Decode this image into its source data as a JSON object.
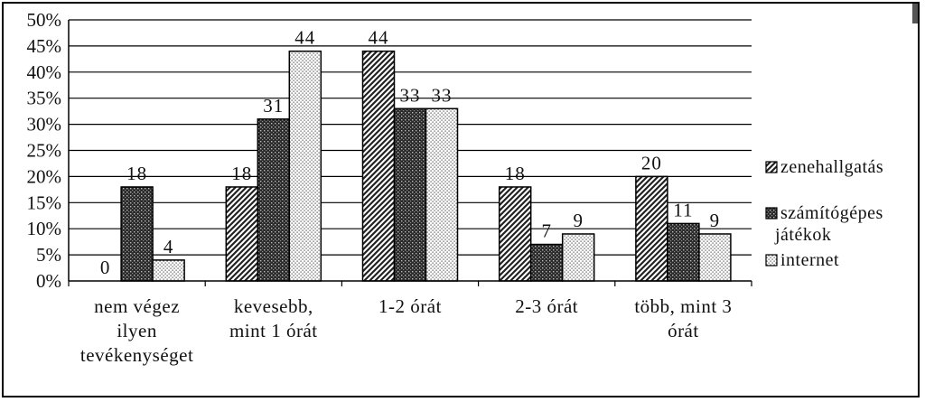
{
  "chart_data": {
    "type": "bar",
    "categories": [
      [
        "nem végez",
        "ilyen",
        "tevékenységet"
      ],
      [
        "kevesebb,",
        "mint 1 órát"
      ],
      [
        "1-2 órát"
      ],
      [
        "2-3 órát"
      ],
      [
        "több, mint 3",
        "órát"
      ]
    ],
    "series": [
      {
        "name": "zenehallgatás",
        "values": [
          0,
          18,
          44,
          18,
          20
        ],
        "pattern": "diagonal"
      },
      {
        "name": "számítógépes játékok",
        "name_lines": [
          "számítógépes",
          "játékok"
        ],
        "values": [
          18,
          31,
          33,
          7,
          11
        ],
        "pattern": "crosshatch"
      },
      {
        "name": "internet",
        "values": [
          4,
          44,
          33,
          9,
          9
        ],
        "pattern": "dots"
      }
    ],
    "ylim": [
      0,
      50
    ],
    "yticks": [
      "0%",
      "5%",
      "10%",
      "15%",
      "20%",
      "25%",
      "30%",
      "35%",
      "40%",
      "45%",
      "50%"
    ],
    "grid": true,
    "legend_position": "right",
    "title": "",
    "xlabel": "",
    "ylabel": ""
  }
}
